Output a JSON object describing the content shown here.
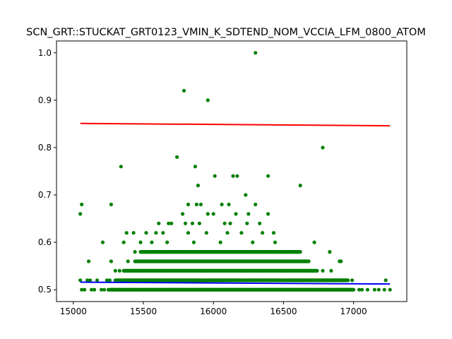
{
  "chart_data": {
    "type": "scatter",
    "title": "SCN_GRT::STUCKAT_GRT0123_VMIN_K_SDTEND_NOM_VCCIA_LFM_0800_ATOM",
    "xlabel": "",
    "ylabel": "",
    "xlim": [
      14880,
      17380
    ],
    "ylim": [
      0.475,
      1.025
    ],
    "x_ticks": [
      15000,
      15500,
      16000,
      16500,
      17000
    ],
    "y_ticks": [
      0.5,
      0.6,
      0.7,
      0.8,
      0.9,
      1.0
    ],
    "x_tick_labels": [
      "15000",
      "15500",
      "16000",
      "16500",
      "17000"
    ],
    "y_tick_labels": [
      "0.5",
      "0.6",
      "0.7",
      "0.8",
      "0.9",
      "1.0"
    ],
    "grid": false,
    "series": [
      {
        "kind": "points",
        "color": "#008000",
        "points": [
          [
            16300,
            1.0
          ],
          [
            15790,
            0.92
          ],
          [
            15960,
            0.9
          ],
          [
            16780,
            0.8
          ],
          [
            15740,
            0.78
          ],
          [
            15340,
            0.76
          ],
          [
            15870,
            0.76
          ],
          [
            16010,
            0.74
          ],
          [
            16140,
            0.74
          ],
          [
            16170,
            0.74
          ],
          [
            16390,
            0.74
          ],
          [
            15890,
            0.72
          ],
          [
            16620,
            0.72
          ],
          [
            16230,
            0.7
          ],
          [
            15060,
            0.68
          ],
          [
            15270,
            0.68
          ],
          [
            15820,
            0.68
          ],
          [
            15880,
            0.68
          ],
          [
            15910,
            0.68
          ],
          [
            16060,
            0.68
          ],
          [
            16110,
            0.68
          ],
          [
            16300,
            0.68
          ],
          [
            15050,
            0.66
          ],
          [
            15780,
            0.66
          ],
          [
            15960,
            0.66
          ],
          [
            16000,
            0.66
          ],
          [
            16160,
            0.66
          ],
          [
            16250,
            0.66
          ],
          [
            16390,
            0.66
          ],
          [
            15610,
            0.64
          ],
          [
            15680,
            0.64
          ],
          [
            15700,
            0.64
          ],
          [
            15800,
            0.64
          ],
          [
            15850,
            0.64
          ],
          [
            15900,
            0.64
          ],
          [
            16080,
            0.64
          ],
          [
            16120,
            0.64
          ],
          [
            16240,
            0.64
          ],
          [
            16330,
            0.64
          ],
          [
            15380,
            0.62
          ],
          [
            15430,
            0.62
          ],
          [
            15520,
            0.62
          ],
          [
            15590,
            0.62
          ],
          [
            15640,
            0.62
          ],
          [
            15820,
            0.62
          ],
          [
            15950,
            0.62
          ],
          [
            16100,
            0.62
          ],
          [
            16200,
            0.62
          ],
          [
            16350,
            0.62
          ],
          [
            16430,
            0.62
          ],
          [
            15210,
            0.6
          ],
          [
            15360,
            0.6
          ],
          [
            15480,
            0.6
          ],
          [
            15560,
            0.6
          ],
          [
            15670,
            0.6
          ],
          [
            15860,
            0.6
          ],
          [
            16050,
            0.6
          ],
          [
            16280,
            0.6
          ],
          [
            16440,
            0.6
          ],
          [
            16720,
            0.6
          ],
          [
            15440,
            0.58
          ],
          [
            15520,
            0.58
          ],
          [
            15630,
            0.58
          ],
          [
            16500,
            0.58
          ],
          [
            16830,
            0.58
          ],
          [
            15110,
            0.56
          ],
          [
            15270,
            0.56
          ],
          [
            15390,
            0.56
          ],
          [
            15450,
            0.56
          ],
          [
            16580,
            0.56
          ],
          [
            16640,
            0.56
          ],
          [
            16900,
            0.56
          ],
          [
            16910,
            0.56
          ],
          [
            15300,
            0.54
          ],
          [
            15330,
            0.54
          ],
          [
            16680,
            0.54
          ],
          [
            16780,
            0.54
          ],
          [
            16840,
            0.54
          ],
          [
            15050,
            0.52
          ],
          [
            15100,
            0.52
          ],
          [
            15120,
            0.52
          ],
          [
            15170,
            0.52
          ],
          [
            15240,
            0.52
          ],
          [
            15260,
            0.52
          ],
          [
            17230,
            0.52
          ],
          [
            16880,
            0.52
          ],
          [
            16990,
            0.52
          ],
          [
            15060,
            0.5
          ],
          [
            15080,
            0.5
          ],
          [
            15130,
            0.5
          ],
          [
            15150,
            0.5
          ],
          [
            15200,
            0.5
          ],
          [
            15220,
            0.5
          ],
          [
            15250,
            0.5
          ],
          [
            17040,
            0.5
          ],
          [
            17060,
            0.5
          ],
          [
            17100,
            0.5
          ],
          [
            17150,
            0.5
          ],
          [
            17180,
            0.5
          ],
          [
            17220,
            0.5
          ],
          [
            17260,
            0.5
          ]
        ],
        "bands": [
          {
            "y": 0.58,
            "x_from": 15480,
            "x_to": 16620
          },
          {
            "y": 0.56,
            "x_from": 15440,
            "x_to": 16680
          },
          {
            "y": 0.54,
            "x_from": 15360,
            "x_to": 16740
          },
          {
            "y": 0.52,
            "x_from": 15300,
            "x_to": 16960
          },
          {
            "y": 0.5,
            "x_from": 15260,
            "x_to": 17000
          }
        ]
      },
      {
        "kind": "line",
        "color": "#ff0000",
        "x": [
          15050,
          17260
        ],
        "y": [
          0.851,
          0.846
        ]
      },
      {
        "kind": "line",
        "color": "#0000ff",
        "x": [
          15050,
          17260
        ],
        "y": [
          0.516,
          0.512
        ]
      }
    ]
  }
}
